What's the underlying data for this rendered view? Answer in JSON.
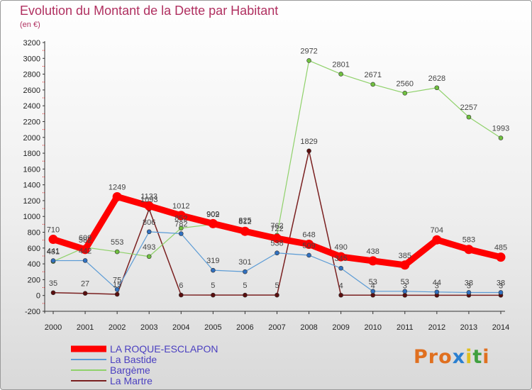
{
  "header": {
    "title": "Evolution du Montant de la Dette par Habitant",
    "subtitle": "(en €)"
  },
  "logo": {
    "text": "Proxiti",
    "colors": [
      "#e07020",
      "#e07020",
      "#e07020",
      "#2a7fd0",
      "#e0c020",
      "#40a040",
      "#e07020"
    ]
  },
  "chart_data": {
    "type": "line",
    "title": "Evolution du Montant de la Dette par Habitant",
    "subtitle": "(en €)",
    "xlabel": "",
    "ylabel": "",
    "x": [
      "2000",
      "2001",
      "2002",
      "2003",
      "2004",
      "2005",
      "2006",
      "2007",
      "2008",
      "2009",
      "2010",
      "2011",
      "2012",
      "2013",
      "2014"
    ],
    "ylim": [
      -200,
      3200
    ],
    "yticks": [
      -200,
      0,
      200,
      400,
      600,
      800,
      1000,
      1200,
      1400,
      1600,
      1800,
      2000,
      2200,
      2400,
      2600,
      2800,
      3000,
      3200
    ],
    "grid": false,
    "legend_position": "bottom-left",
    "series": [
      {
        "name": "LA ROQUE-ESCLAPON",
        "color": "#ff0000",
        "values": [
          710,
          582,
          1249,
          1133,
          1012,
          909,
          812,
          722,
          648,
          490,
          438,
          385,
          704,
          583,
          485
        ]
      },
      {
        "name": "La Bastide",
        "color": "#5b9bd5",
        "values": [
          441,
          442,
          75,
          806,
          782,
          319,
          301,
          538,
          509,
          345,
          53,
          53,
          44,
          38,
          38
        ]
      },
      {
        "name": "Bargème",
        "color": "#8fd16a",
        "values": [
          431,
          609,
          553,
          493,
          852,
          902,
          825,
          762,
          2972,
          2801,
          2671,
          2560,
          2628,
          2257,
          1993
        ]
      },
      {
        "name": "La Martre",
        "color": "#7a2020",
        "values": [
          35,
          27,
          15,
          1093,
          6,
          5,
          5,
          5,
          1829,
          4,
          4,
          3,
          3,
          3,
          3
        ]
      }
    ]
  }
}
